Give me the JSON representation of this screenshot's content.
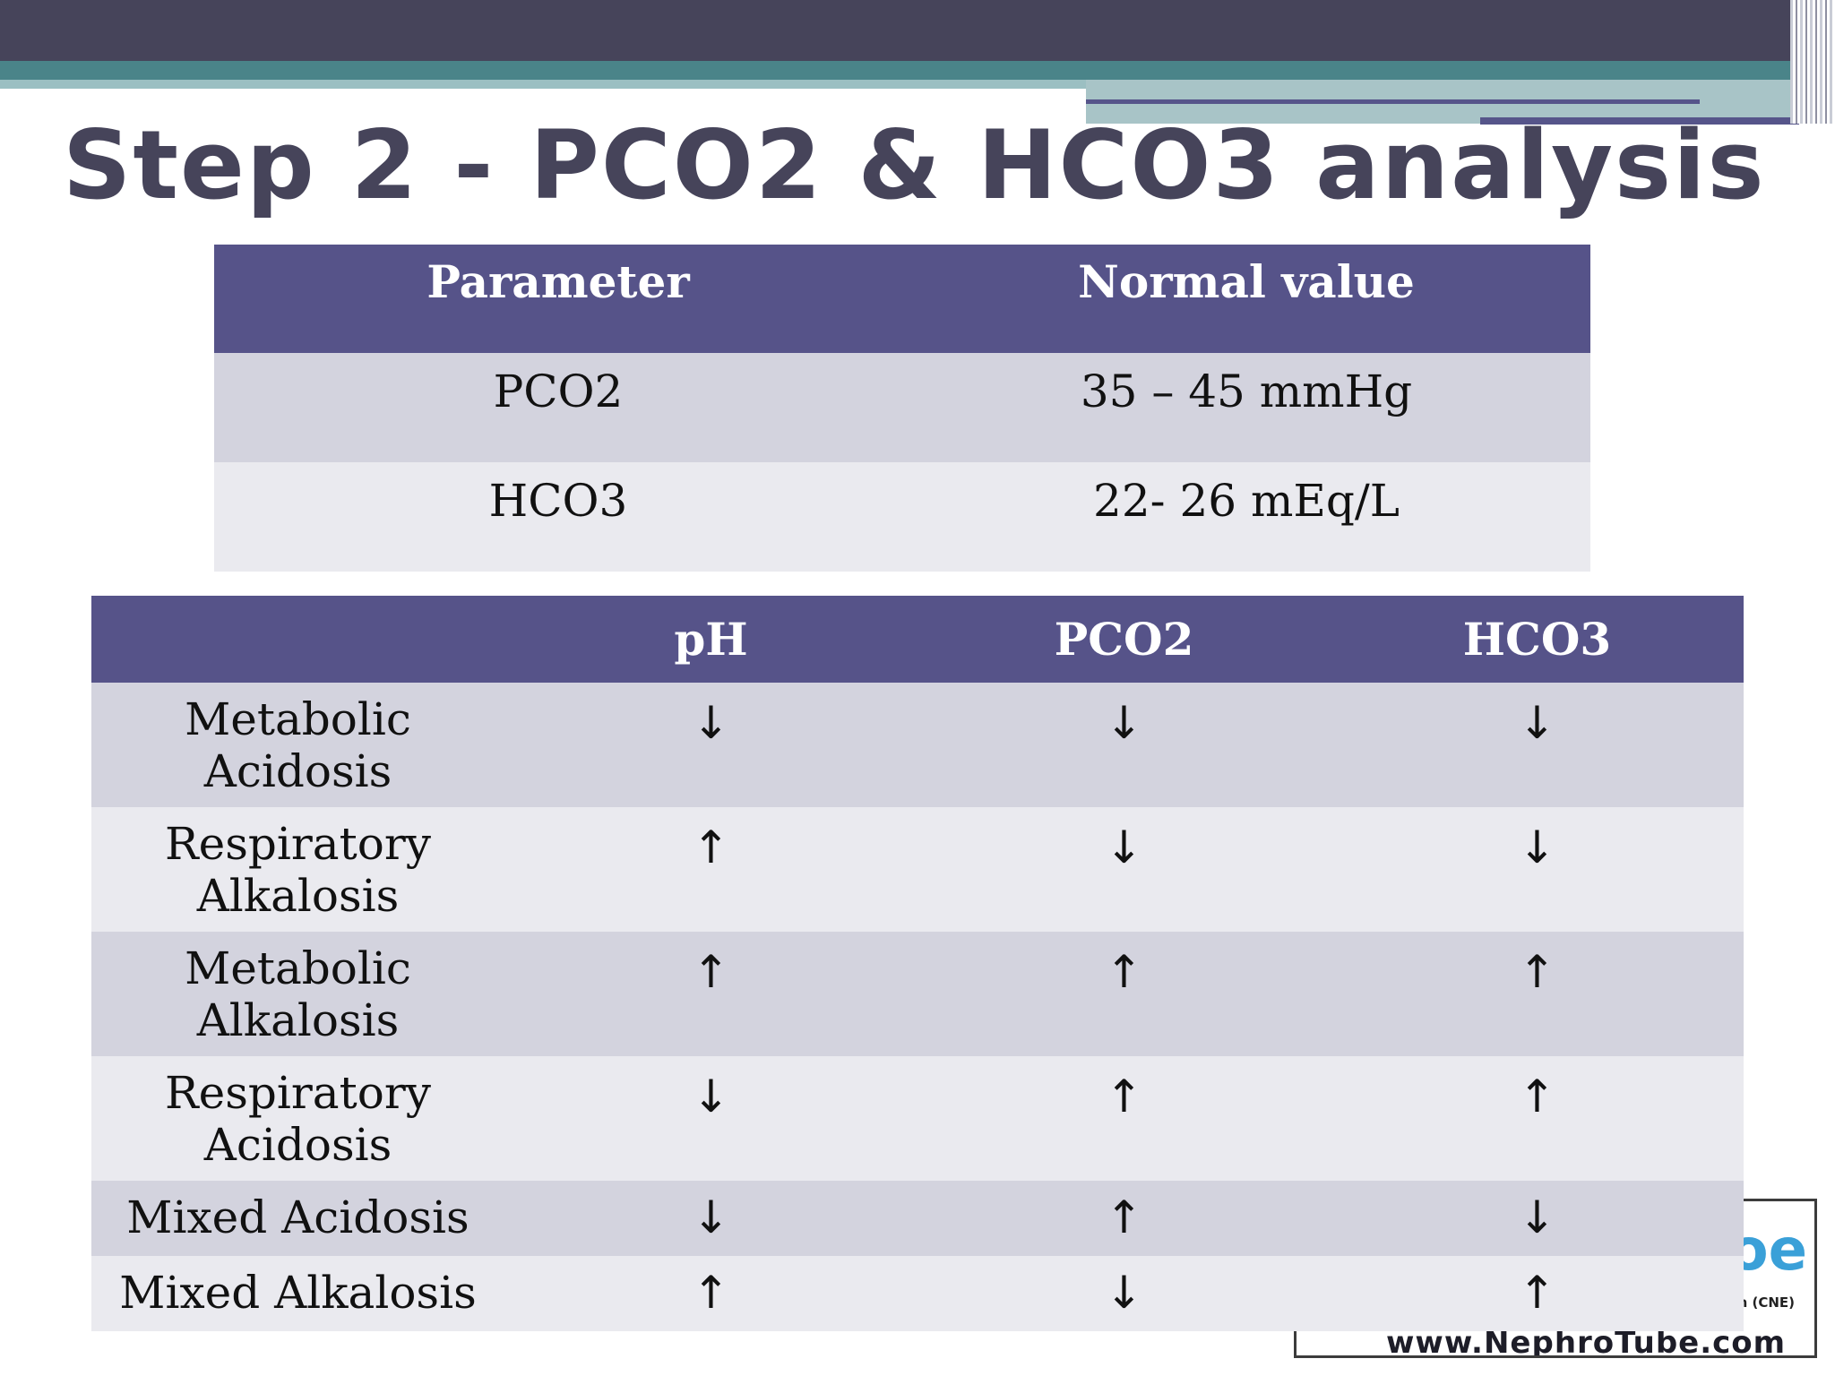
{
  "title": "Step 2 - PCO2 & HCO3 analysis",
  "normal_values_table": {
    "headers": [
      "Parameter",
      "Normal value"
    ],
    "rows": [
      {
        "parameter": "PCO2",
        "normal_value": "35 – 45 mmHg"
      },
      {
        "parameter": "HCO3",
        "normal_value": "22- 26 mEq/L"
      }
    ]
  },
  "disorders_table": {
    "headers": [
      "",
      "pH",
      "PCO2",
      "HCO3"
    ],
    "rows": [
      {
        "line1": "Metabolic",
        "line2": "Acidosis",
        "ph": "↓",
        "pco2": "↓",
        "hco3": "↓"
      },
      {
        "line1": "Respiratory",
        "line2": "Alkalosis",
        "ph": "↑",
        "pco2": "↓",
        "hco3": "↓"
      },
      {
        "line1": "Metabolic",
        "line2": "Alkalosis",
        "ph": "↑",
        "pco2": "↑",
        "hco3": "↑"
      },
      {
        "line1": "Respiratory",
        "line2": "Acidosis",
        "ph": "↓",
        "pco2": "↑",
        "hco3": "↑"
      },
      {
        "line1": "Mixed Acidosis",
        "ph": "↓",
        "pco2": "↑",
        "hco3": "↓"
      },
      {
        "line1": "Mixed Alkalosis",
        "ph": "↑",
        "pco2": "↓",
        "hco3": "↑"
      }
    ]
  },
  "logo": {
    "big_text": "oe",
    "small_text": "n (CNE)",
    "url_text": "www.NephroTube.com"
  },
  "colors": {
    "header_bg": "#565389",
    "row_dark": "#d3d3de",
    "row_light": "#eaeaef",
    "title": "#46445a",
    "top_bar": "#46445a",
    "teal_bar": "#4a8489"
  }
}
